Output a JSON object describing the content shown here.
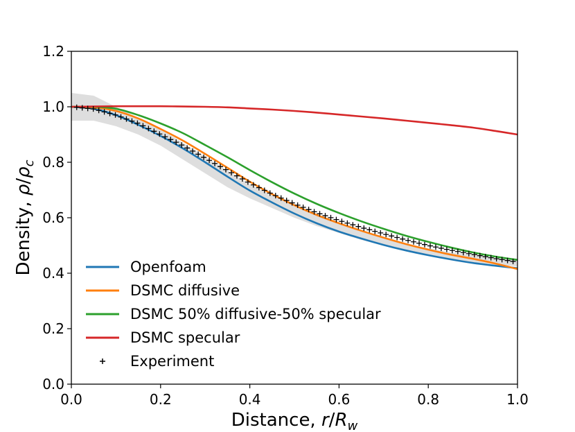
{
  "chart_data": {
    "type": "line",
    "xlabel": "Distance, r/R_w",
    "xlabel_parts": {
      "prefix": "Distance, ",
      "var": "r",
      "slash": "/",
      "sym": "R",
      "sub": "w"
    },
    "ylabel": "Density, ρ/ρ_c",
    "ylabel_parts": {
      "prefix": "Density, ",
      "var": "ρ",
      "slash": "/",
      "sym": "ρ",
      "sub": "c"
    },
    "xlim": [
      0.0,
      1.0
    ],
    "ylim": [
      0.0,
      1.2
    ],
    "xticks": [
      "0.0",
      "0.2",
      "0.4",
      "0.6",
      "0.8",
      "1.0"
    ],
    "yticks": [
      "0.0",
      "0.2",
      "0.4",
      "0.6",
      "0.8",
      "1.0",
      "1.2"
    ],
    "grid": false,
    "legend_position": "lower-left",
    "uncertainty_band": {
      "x": [
        0.0,
        0.05,
        0.1,
        0.15,
        0.2,
        0.25,
        0.3,
        0.35,
        0.4,
        0.45,
        0.5,
        0.55,
        0.6,
        0.65,
        0.7,
        0.75,
        0.8,
        0.85,
        0.9,
        0.95,
        1.0
      ],
      "lower": [
        0.95,
        0.95,
        0.93,
        0.9,
        0.86,
        0.81,
        0.76,
        0.71,
        0.67,
        0.635,
        0.6,
        0.57,
        0.545,
        0.52,
        0.5,
        0.48,
        0.465,
        0.45,
        0.44,
        0.43,
        0.425
      ],
      "upper": [
        1.05,
        1.04,
        1.0,
        0.96,
        0.92,
        0.87,
        0.82,
        0.77,
        0.72,
        0.68,
        0.645,
        0.61,
        0.58,
        0.55,
        0.525,
        0.505,
        0.49,
        0.475,
        0.465,
        0.455,
        0.45
      ]
    },
    "series": [
      {
        "name": "Openfoam",
        "color": "#1f77b4",
        "x": [
          0.0,
          0.05,
          0.1,
          0.15,
          0.2,
          0.25,
          0.3,
          0.35,
          0.4,
          0.45,
          0.5,
          0.55,
          0.6,
          0.65,
          0.7,
          0.75,
          0.8,
          0.85,
          0.9,
          0.95,
          1.0
        ],
        "values": [
          1.0,
          0.993,
          0.97,
          0.935,
          0.895,
          0.85,
          0.8,
          0.748,
          0.698,
          0.655,
          0.615,
          0.58,
          0.55,
          0.525,
          0.502,
          0.482,
          0.465,
          0.45,
          0.437,
          0.427,
          0.418
        ]
      },
      {
        "name": "DSMC diffusive",
        "color": "#ff7f0e",
        "x": [
          0.0,
          0.05,
          0.1,
          0.15,
          0.2,
          0.25,
          0.3,
          0.35,
          0.4,
          0.45,
          0.5,
          0.55,
          0.6,
          0.65,
          0.7,
          0.75,
          0.8,
          0.85,
          0.9,
          0.95,
          1.0
        ],
        "values": [
          1.0,
          0.998,
          0.985,
          0.958,
          0.92,
          0.878,
          0.83,
          0.78,
          0.73,
          0.685,
          0.645,
          0.61,
          0.58,
          0.553,
          0.528,
          0.505,
          0.485,
          0.467,
          0.452,
          0.435,
          0.415
        ]
      },
      {
        "name": "DSMC 50% diffusive-50% specular",
        "color": "#2ca02c",
        "x": [
          0.0,
          0.05,
          0.1,
          0.15,
          0.2,
          0.25,
          0.3,
          0.35,
          0.4,
          0.45,
          0.5,
          0.55,
          0.6,
          0.65,
          0.7,
          0.75,
          0.8,
          0.85,
          0.9,
          0.95,
          1.0
        ],
        "values": [
          1.0,
          1.0,
          0.993,
          0.97,
          0.94,
          0.905,
          0.862,
          0.818,
          0.772,
          0.728,
          0.687,
          0.65,
          0.617,
          0.587,
          0.56,
          0.535,
          0.513,
          0.493,
          0.475,
          0.46,
          0.448
        ]
      },
      {
        "name": "DSMC specular",
        "color": "#d62728",
        "x": [
          0.0,
          0.05,
          0.1,
          0.15,
          0.2,
          0.25,
          0.3,
          0.35,
          0.4,
          0.45,
          0.5,
          0.55,
          0.6,
          0.65,
          0.7,
          0.75,
          0.8,
          0.85,
          0.9,
          0.95,
          1.0
        ],
        "values": [
          1.0,
          1.001,
          1.002,
          1.002,
          1.002,
          1.001,
          1.0,
          0.998,
          0.994,
          0.99,
          0.985,
          0.979,
          0.972,
          0.965,
          0.958,
          0.95,
          0.942,
          0.934,
          0.925,
          0.913,
          0.9
        ]
      }
    ],
    "experiment": {
      "name": "Experiment",
      "marker": "+",
      "color": "#000000",
      "x": [
        0.0,
        0.05,
        0.1,
        0.15,
        0.2,
        0.25,
        0.3,
        0.35,
        0.4,
        0.45,
        0.5,
        0.55,
        0.6,
        0.65,
        0.7,
        0.75,
        0.8,
        0.85,
        0.9,
        0.95,
        1.0
      ],
      "values": [
        1.0,
        0.992,
        0.97,
        0.94,
        0.9,
        0.86,
        0.815,
        0.77,
        0.725,
        0.685,
        0.65,
        0.618,
        0.59,
        0.565,
        0.542,
        0.52,
        0.5,
        0.483,
        0.468,
        0.453,
        0.44
      ]
    }
  }
}
